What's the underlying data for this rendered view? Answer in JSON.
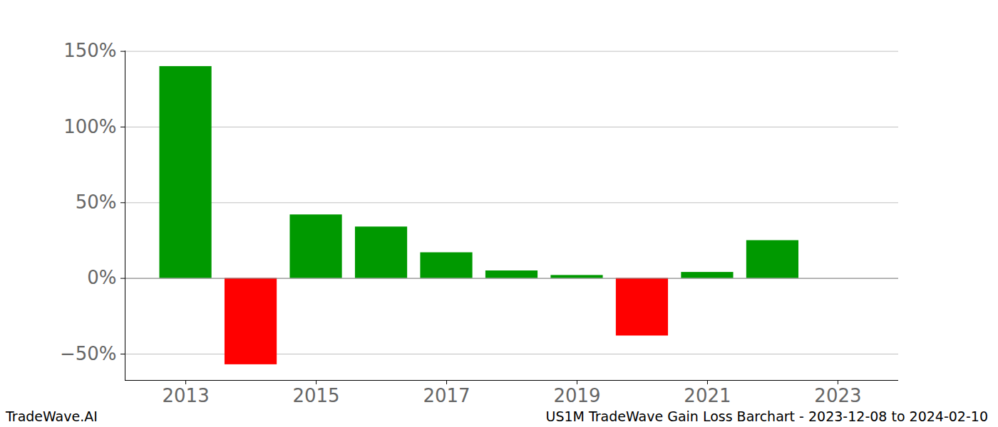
{
  "chart_data": {
    "type": "bar",
    "title": "US1M TradeWave Gain Loss Barchart - 2023-12-08 to 2024-02-10",
    "annotations": [
      "TradeWave.AI"
    ],
    "x": [
      2013,
      2014,
      2015,
      2016,
      2017,
      2018,
      2019,
      2020,
      2021,
      2022
    ],
    "values": [
      140,
      -57,
      42,
      34,
      17,
      5,
      2,
      -38,
      4,
      25
    ],
    "colors": [
      "#009900",
      "#ff0000",
      "#009900",
      "#009900",
      "#009900",
      "#009900",
      "#009900",
      "#ff0000",
      "#009900",
      "#009900"
    ],
    "xlim": [
      2012.07,
      2023.93
    ],
    "xticks": [
      2013,
      2015,
      2017,
      2019,
      2021,
      2023
    ],
    "ylim": [
      -67.4,
      150.3
    ],
    "yticks": [
      {
        "value": -50,
        "label": "−50%"
      },
      {
        "value": 0,
        "label": "0%"
      },
      {
        "value": 50,
        "label": "50%"
      },
      {
        "value": 100,
        "label": "100%"
      },
      {
        "value": 150,
        "label": "150%"
      }
    ],
    "grid": true
  }
}
